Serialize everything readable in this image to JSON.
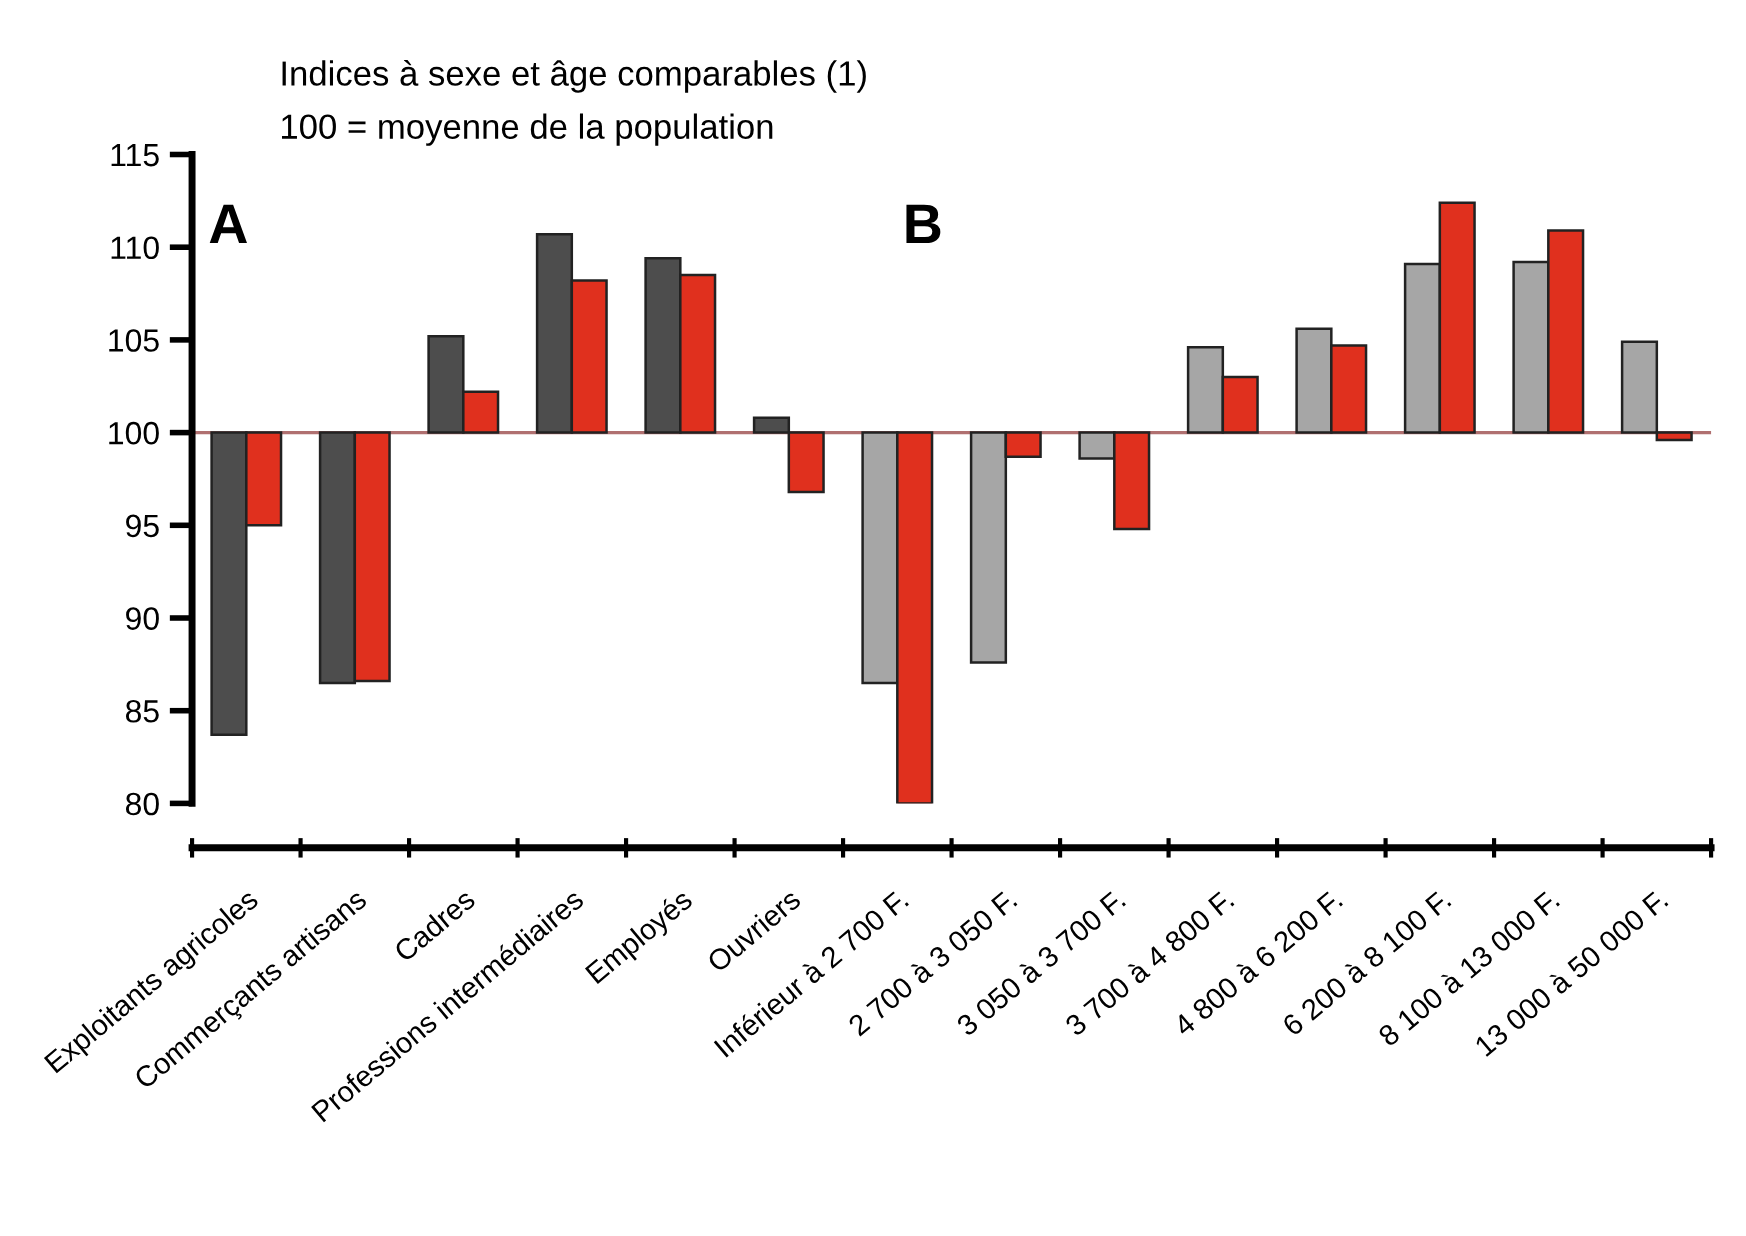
{
  "chart_data": {
    "type": "bar",
    "title": "Indices à sexe et âge comparables (1)",
    "subtitle": "100 = moyenne de la population",
    "categories": [
      "Exploitants agricoles",
      "Commerçants artisans",
      "Cadres",
      "Professions intermédiaires",
      "Employés",
      "Ouvriers",
      "Inférieur à 2 700 F.",
      "2 700 à 3 050 F.",
      "3 050 à 3 700 F.",
      "3 700 à 4 800 F.",
      "4 800 à 6 200 F.",
      "6 200 à 8 100 F.",
      "8 100 à 13 000 F.",
      "13 000 à 50 000 F."
    ],
    "series": [
      {
        "colors": [
          "#4d4d4d",
          "#4d4d4d",
          "#4d4d4d",
          "#4d4d4d",
          "#4d4d4d",
          "#4d4d4d",
          "#a6a6a6",
          "#a6a6a6",
          "#a6a6a6",
          "#a6a6a6",
          "#a6a6a6",
          "#a6a6a6",
          "#a6a6a6",
          "#a6a6a6"
        ],
        "base": [
          100,
          100,
          100,
          100,
          100,
          100,
          100,
          100,
          100,
          100,
          100,
          100,
          100,
          100
        ],
        "values": [
          -16.3,
          -13.5,
          5.2,
          10.7,
          9.4,
          0.8,
          -13.5,
          -12.4,
          -1.4,
          4.6,
          5.6,
          9.1,
          9.2,
          4.9
        ]
      },
      {
        "color": "#e0301e",
        "base": [
          100,
          100,
          100,
          100,
          100,
          100,
          100,
          100,
          100,
          100,
          100,
          100,
          100,
          100
        ],
        "values": [
          -5.0,
          -13.4,
          2.2,
          8.2,
          8.5,
          -3.2,
          -20.0,
          -1.3,
          -5.2,
          3.0,
          4.7,
          12.4,
          10.9,
          -0.4
        ]
      }
    ],
    "ylim": [
      80,
      115
    ],
    "yticks": [
      80,
      85,
      90,
      95,
      100,
      105,
      110,
      115
    ],
    "ref_lines": [
      {
        "axis": "y",
        "value": 100,
        "color": "#b07070"
      }
    ],
    "annotations": [
      "A",
      "B"
    ]
  }
}
